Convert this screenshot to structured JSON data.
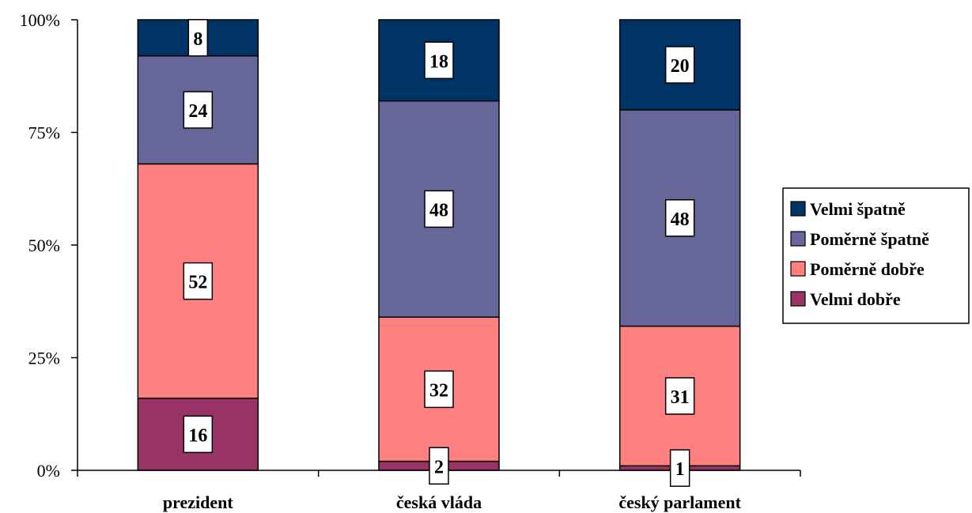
{
  "chart_data": {
    "type": "bar",
    "stacked": true,
    "categories": [
      "prezident",
      "česká vláda",
      "český parlament"
    ],
    "series": [
      {
        "name": "Velmi dobře",
        "values": [
          16,
          2,
          1
        ],
        "color": "#993366"
      },
      {
        "name": "Poměrně dobře",
        "values": [
          52,
          32,
          31
        ],
        "color": "#FF8080"
      },
      {
        "name": "Poměrně špatně",
        "values": [
          24,
          48,
          48
        ],
        "color": "#666699"
      },
      {
        "name": "Velmi špatně",
        "values": [
          8,
          18,
          20
        ],
        "color": "#003366"
      }
    ],
    "yticks": [
      "0%",
      "25%",
      "50%",
      "75%",
      "100%"
    ],
    "ylim": [
      0,
      100
    ],
    "title": "",
    "xlabel": "",
    "ylabel": "",
    "grid": false,
    "legend": "right"
  }
}
